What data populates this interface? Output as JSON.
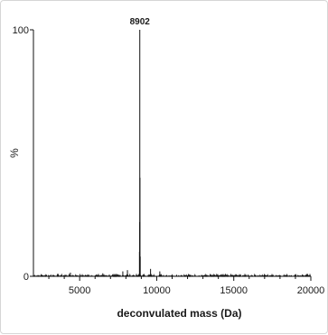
{
  "chart_data": {
    "type": "line",
    "title": "",
    "xlabel": "deconvulated mass (Da)",
    "ylabel": "%",
    "xlim": [
      2000,
      20000
    ],
    "ylim": [
      0,
      100
    ],
    "x_ticks": [
      5000,
      10000,
      15000,
      20000
    ],
    "x_tick_labels": [
      "5000",
      "10000",
      "15000",
      "20000"
    ],
    "y_ticks": [
      0,
      100
    ],
    "y_tick_labels": [
      "0",
      "100"
    ],
    "grid": false,
    "series": [
      {
        "points": [
          [
            8880,
            10
          ],
          [
            8895,
            22
          ],
          [
            8902,
            100
          ],
          [
            8912,
            40
          ],
          [
            8930,
            8
          ],
          [
            4400,
            1.5
          ],
          [
            6500,
            1.2
          ],
          [
            7800,
            2
          ],
          [
            8100,
            2.5
          ],
          [
            9600,
            3
          ],
          [
            10200,
            2
          ]
        ]
      }
    ],
    "annotations": [
      {
        "text": "8902",
        "x": 8902,
        "y": 100
      }
    ],
    "colors": {
      "line": "#111111",
      "axis": "#111111"
    }
  }
}
